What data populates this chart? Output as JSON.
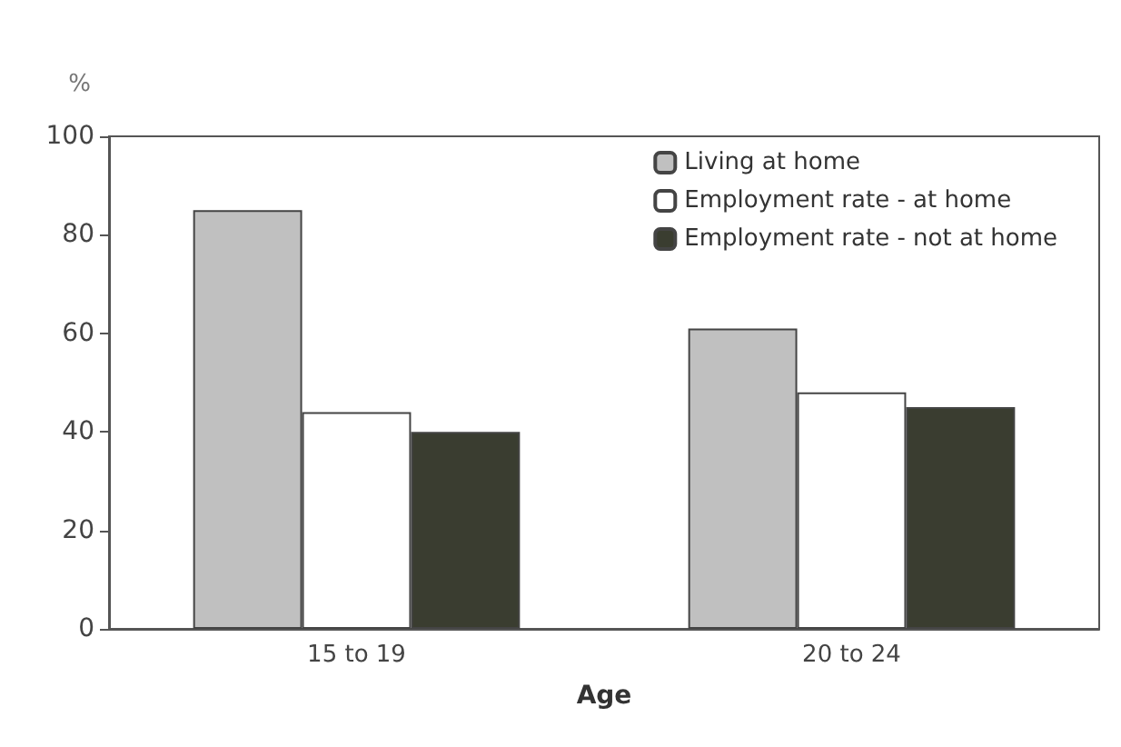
{
  "chart_data": {
    "type": "bar",
    "ylabel": "%",
    "xlabel": "Age",
    "categories": [
      "15 to 19",
      "20 to 24"
    ],
    "series": [
      {
        "name": "Living at home",
        "color": "#c0c0c0",
        "values": [
          85,
          61
        ]
      },
      {
        "name": "Employment rate - at home",
        "color": "#ffffff",
        "values": [
          44,
          48
        ]
      },
      {
        "name": "Employment rate - not at home",
        "color": "#3a3d30",
        "values": [
          40,
          45
        ]
      }
    ],
    "ylim": [
      0,
      100
    ],
    "yticks": [
      0,
      20,
      40,
      60,
      80,
      100
    ],
    "grid": false,
    "legend": "top right"
  }
}
